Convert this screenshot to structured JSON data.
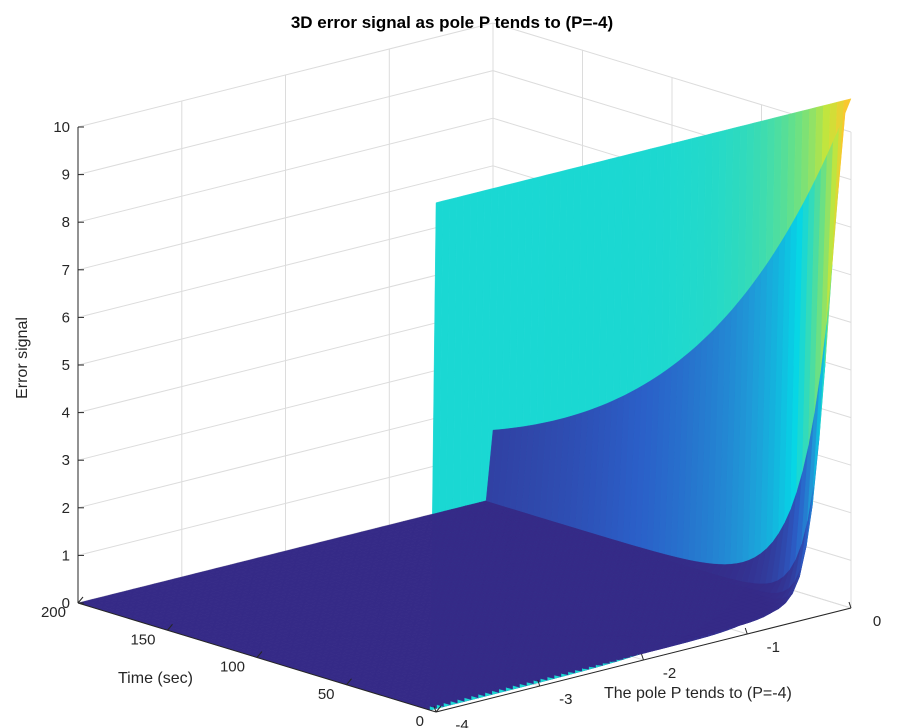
{
  "chart_data": {
    "type": "surface",
    "title": "3D error signal as pole P tends to (P=-4)",
    "xlabel": "The pole P tends to (P=-4)",
    "ylabel": "Time (sec)",
    "zlabel": "Error signal",
    "x_ticks": [
      "-4",
      "-3",
      "-2",
      "-1",
      "0"
    ],
    "y_ticks": [
      "0",
      "50",
      "100",
      "150",
      "200"
    ],
    "z_ticks": [
      "0",
      "1",
      "2",
      "3",
      "4",
      "5",
      "6",
      "7",
      "8",
      "9",
      "10"
    ],
    "xlim": [
      -4,
      0
    ],
    "ylim": [
      0,
      200
    ],
    "zlim": [
      0,
      10
    ],
    "grid": true,
    "colormap": [
      "#352a87",
      "#2b5fc8",
      "#1f9bd8",
      "#06d6e6",
      "#64e08a",
      "#c6e53a",
      "#f9c82f"
    ],
    "surface_peak": 10.7,
    "surface_model": "error = Z0 * exp(P * t) * 1.06, Z0 ≈ 10.7 at t=0 near P=0"
  }
}
